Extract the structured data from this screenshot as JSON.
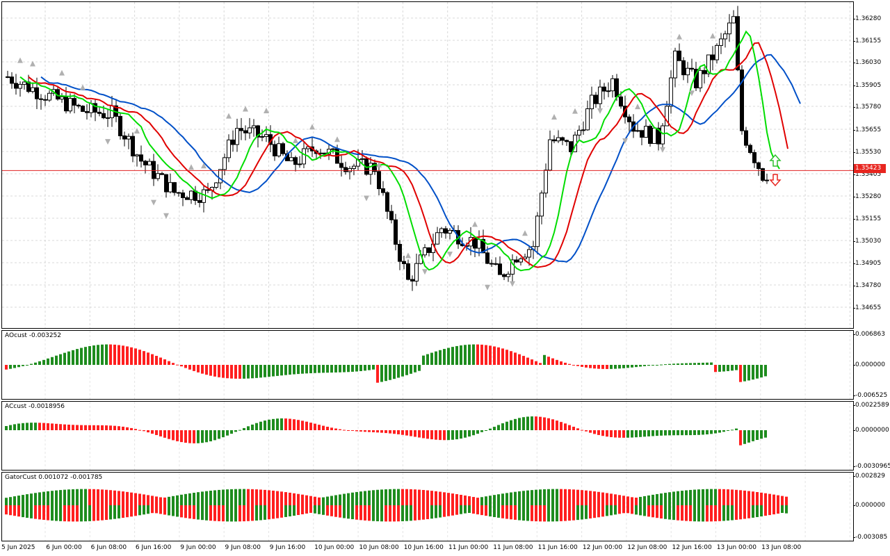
{
  "main_chart": {
    "symbol_price_line": 1.35423,
    "current_price_label": "1.35423",
    "price_ticks": [
      "1.36280",
      "1.36155",
      "1.36030",
      "1.35905",
      "1.35780",
      "1.35655",
      "1.35530",
      "1.35405",
      "1.35280",
      "1.35155",
      "1.35030",
      "1.34905",
      "1.34780",
      "1.34655"
    ],
    "arrow_up_color": "#2fbf2f",
    "arrow_down_color": "#e8251f",
    "line_colors": {
      "fast": "#00dd00",
      "mid": "#e00000",
      "slow": "#0050c8"
    }
  },
  "ao_pane": {
    "label": "AOcust -0.003252",
    "ticks": [
      "0.006863",
      "0.000000",
      "-0.006525"
    ],
    "up_color": "#1e8c1e",
    "down_color": "#ff1f1f"
  },
  "ac_pane": {
    "label": "ACcust -0.0018956",
    "ticks": [
      "0.0022589",
      "0.0000000",
      "-0.0030965"
    ],
    "up_color": "#1e8c1e",
    "down_color": "#ff1f1f"
  },
  "gator_pane": {
    "label": "GatorCust 0.001072 -0.001785",
    "ticks": [
      "0.002829",
      "0.000000",
      "-0.003085"
    ],
    "up_color": "#1e8c1e",
    "down_color": "#ff1f1f"
  },
  "time_axis": {
    "labels": [
      "5 Jun 2025",
      "6 Jun 00:00",
      "6 Jun 08:00",
      "6 Jun 16:00",
      "9 Jun 00:00",
      "9 Jun 08:00",
      "9 Jun 16:00",
      "10 Jun 00:00",
      "10 Jun 08:00",
      "10 Jun 16:00",
      "11 Jun 00:00",
      "11 Jun 08:00",
      "11 Jun 16:00",
      "12 Jun 00:00",
      "12 Jun 08:00",
      "12 Jun 16:00",
      "13 Jun 00:00",
      "13 Jun 08:00"
    ]
  }
}
